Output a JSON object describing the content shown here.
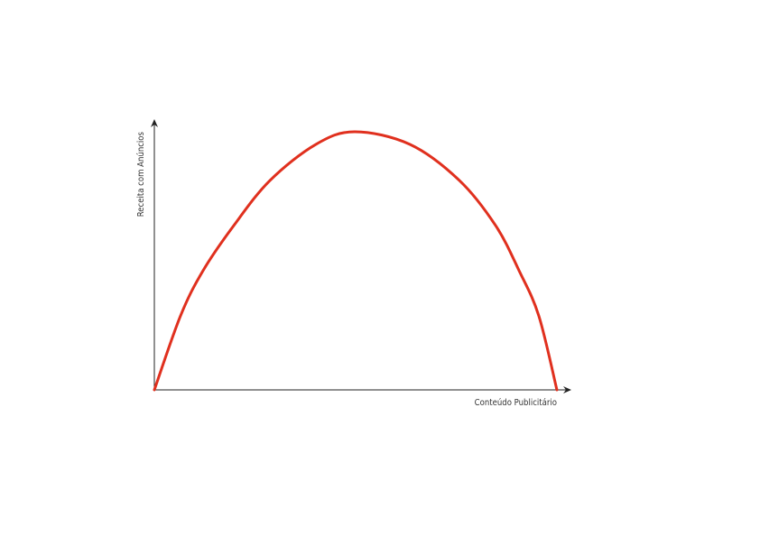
{
  "chart_data": {
    "type": "line",
    "title": "",
    "xlabel": "Conteúdo Publicitário",
    "ylabel": "Receita com Anúncios",
    "xlim": [
      0,
      100
    ],
    "ylim": [
      0,
      100
    ],
    "grid": false,
    "ticks": false,
    "series": [
      {
        "color": "#e0301e",
        "x": [
          0,
          6.5,
          12.1,
          19.7,
          28.7,
          40.1,
          49.8,
          63.5,
          75.8,
          84.8,
          90.6,
          95.5,
          100
        ],
        "y": [
          0,
          28.7,
          46.2,
          63.6,
          81.1,
          95.1,
          100,
          95.1,
          81.1,
          63.6,
          46.2,
          28.7,
          0
        ]
      }
    ],
    "axis_color": "#222222"
  }
}
